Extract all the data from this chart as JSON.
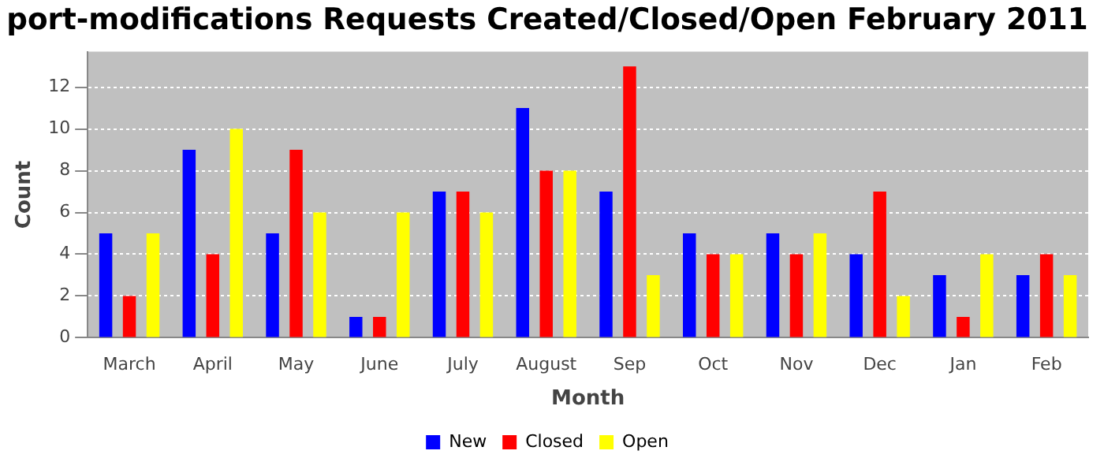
{
  "chart_data": {
    "type": "bar",
    "title": "port-modifications Requests Created/Closed/Open February 2011",
    "xlabel": "Month",
    "ylabel": "Count",
    "categories": [
      "March",
      "April",
      "May",
      "June",
      "July",
      "August",
      "Sep",
      "Oct",
      "Nov",
      "Dec",
      "Jan",
      "Feb"
    ],
    "series": [
      {
        "name": "New",
        "color": "#0000ff",
        "values": [
          5,
          9,
          5,
          1,
          7,
          11,
          7,
          5,
          5,
          4,
          3,
          3
        ]
      },
      {
        "name": "Closed",
        "color": "#ff0000",
        "values": [
          2,
          4,
          9,
          1,
          7,
          8,
          13,
          4,
          4,
          7,
          1,
          4
        ]
      },
      {
        "name": "Open",
        "color": "#ffff00",
        "values": [
          5,
          10,
          6,
          6,
          6,
          8,
          3,
          4,
          5,
          2,
          4,
          3
        ]
      }
    ],
    "ylim": [
      0,
      13.7
    ],
    "yticks": [
      0,
      2,
      4,
      6,
      8,
      10,
      12
    ],
    "grid": "y",
    "legend": "bottom"
  }
}
